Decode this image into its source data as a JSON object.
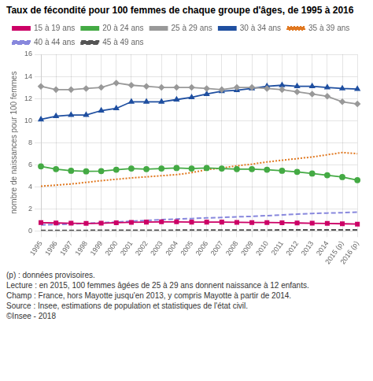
{
  "chart_data": {
    "type": "line",
    "title": "Taux de fécondité pour 100 femmes de chaque groupe d'âges, de 1995 à 2016",
    "y_label": "nombre de naissances pour 100 femmes",
    "categories": [
      "1995",
      "1996",
      "1997",
      "1998",
      "1999",
      "2000",
      "2001",
      "2002",
      "2003",
      "2004",
      "2005",
      "2006",
      "2007",
      "2008",
      "2009",
      "2010",
      "2011",
      "2012",
      "2013",
      "2014",
      "2015 (p)",
      "2016 (p)"
    ],
    "series": [
      {
        "name": "15 à 19 ans",
        "color": "#cc0066",
        "marker": "square",
        "line_style": "solid",
        "values": [
          0.75,
          0.72,
          0.7,
          0.68,
          0.7,
          0.74,
          0.78,
          0.8,
          0.82,
          0.82,
          0.8,
          0.8,
          0.8,
          0.78,
          0.76,
          0.76,
          0.74,
          0.72,
          0.7,
          0.68,
          0.65,
          0.62
        ]
      },
      {
        "name": "20 à 24 ans",
        "color": "#44aa44",
        "marker": "circle",
        "line_style": "solid",
        "values": [
          5.85,
          5.6,
          5.45,
          5.4,
          5.42,
          5.55,
          5.65,
          5.6,
          5.65,
          5.7,
          5.65,
          5.7,
          5.65,
          5.6,
          5.6,
          5.55,
          5.45,
          5.35,
          5.2,
          5.05,
          4.88,
          4.6
        ]
      },
      {
        "name": "25 à 29 ans",
        "color": "#999999",
        "marker": "diamond",
        "line_style": "solid",
        "values": [
          13.1,
          12.8,
          12.8,
          12.9,
          13.0,
          13.4,
          13.2,
          13.1,
          13.0,
          13.0,
          13.0,
          12.9,
          12.8,
          13.0,
          13.0,
          12.9,
          12.8,
          12.6,
          12.4,
          12.2,
          11.7,
          11.5
        ]
      },
      {
        "name": "30 à 34 ans",
        "color": "#1f4fa0",
        "marker": "triangle",
        "line_style": "solid",
        "values": [
          10.1,
          10.4,
          10.5,
          10.5,
          10.9,
          11.1,
          11.7,
          11.7,
          11.7,
          11.9,
          12.1,
          12.4,
          12.65,
          12.75,
          12.9,
          13.1,
          13.2,
          13.1,
          13.1,
          13.0,
          12.9,
          12.85
        ]
      },
      {
        "name": "35 à 39 ans",
        "color": "#e07820",
        "marker": "none",
        "line_style": "dotted",
        "values": [
          4.05,
          4.15,
          4.25,
          4.4,
          4.55,
          4.68,
          4.8,
          4.9,
          5.0,
          5.1,
          5.28,
          5.55,
          5.7,
          5.9,
          6.05,
          6.25,
          6.4,
          6.55,
          6.7,
          6.9,
          7.1,
          7.0
        ]
      },
      {
        "name": "40 à 44 ans",
        "color": "#8888dd",
        "marker": "none",
        "line_style": "dashed",
        "values": [
          0.55,
          0.58,
          0.62,
          0.68,
          0.74,
          0.8,
          0.88,
          0.95,
          1.02,
          1.08,
          1.12,
          1.18,
          1.22,
          1.28,
          1.32,
          1.38,
          1.45,
          1.52,
          1.58,
          1.62,
          1.65,
          1.7
        ]
      },
      {
        "name": "45 à 49 ans",
        "color": "#555555",
        "marker": "none",
        "line_style": "dashed",
        "values": [
          0.05,
          0.05,
          0.05,
          0.05,
          0.06,
          0.06,
          0.06,
          0.06,
          0.06,
          0.07,
          0.07,
          0.07,
          0.07,
          0.08,
          0.08,
          0.08,
          0.09,
          0.09,
          0.09,
          0.1,
          0.1,
          0.1
        ]
      }
    ],
    "ylim": [
      0,
      16
    ],
    "yticks": [
      0,
      2,
      4,
      6,
      8,
      10,
      12,
      14,
      16
    ],
    "grid": true,
    "legend": "top",
    "annotations": [
      "(p) : données provisoires.",
      "Lecture : en 2015, 100 femmes âgées de 25 à 29 ans donnent naissance à 12 enfants.",
      "Champ : France, hors Mayotte jusqu'en 2013, y compris Mayotte à partir de 2014.",
      "Source : Insee, estimations de population et statistiques de l'état civil.",
      "©Insee - 2018"
    ]
  }
}
